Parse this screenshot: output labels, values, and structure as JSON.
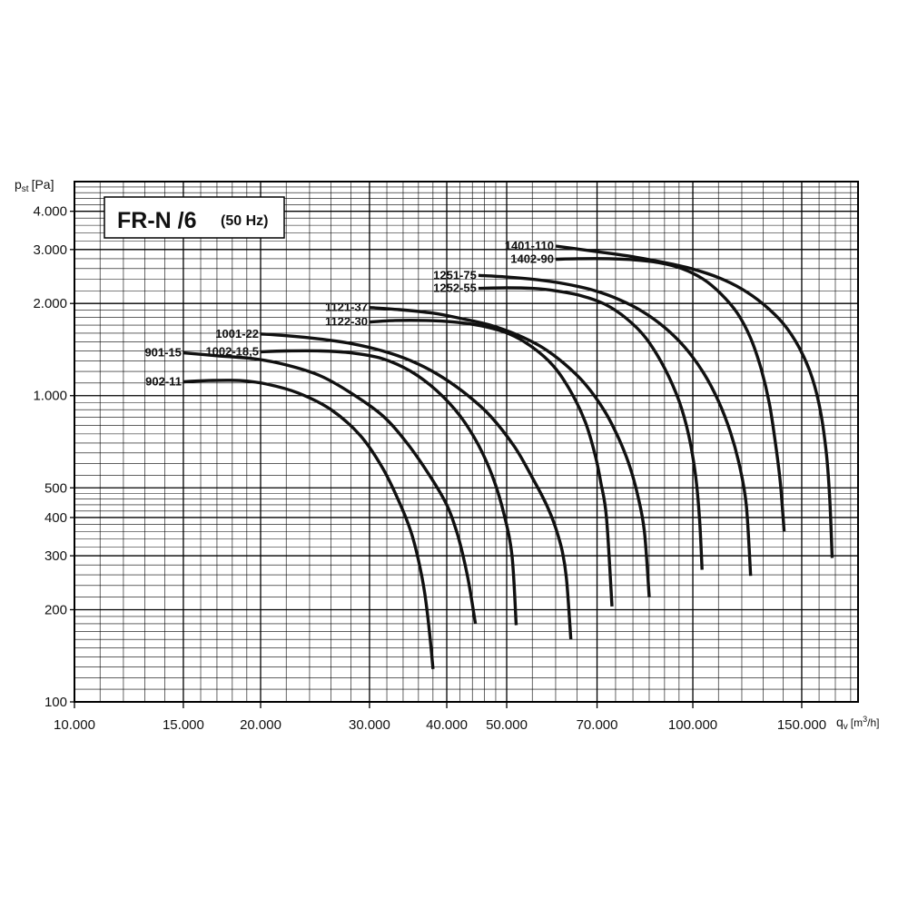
{
  "chart_data": {
    "type": "line",
    "title": "FR-N /6",
    "subtitle": "(50 Hz)",
    "ylabel": {
      "base": "p",
      "sub": "st",
      "unit": "[Pa]"
    },
    "xlabel": {
      "base": "q",
      "sub": "v",
      "unit_pre": "[m",
      "unit_sup": "3",
      "unit_post": "/h]"
    },
    "x_scale": "log",
    "y_scale": "log",
    "xlim": [
      10000,
      185000
    ],
    "ylim": [
      100,
      5000
    ],
    "grid": true,
    "x_ticks": [
      {
        "value": 10000,
        "label": "10.000"
      },
      {
        "value": 15000,
        "label": "15.000"
      },
      {
        "value": 20000,
        "label": "20.000"
      },
      {
        "value": 30000,
        "label": "30.000"
      },
      {
        "value": 40000,
        "label": "40.000"
      },
      {
        "value": 50000,
        "label": "50.000"
      },
      {
        "value": 70000,
        "label": "70.000"
      },
      {
        "value": 100000,
        "label": "100.000"
      },
      {
        "value": 150000,
        "label": "150.000"
      }
    ],
    "y_ticks": [
      {
        "value": 100,
        "label": "100"
      },
      {
        "value": 200,
        "label": "200"
      },
      {
        "value": 300,
        "label": "300"
      },
      {
        "value": 400,
        "label": "400"
      },
      {
        "value": 500,
        "label": "500"
      },
      {
        "value": 1000,
        "label": "1.000"
      },
      {
        "value": 2000,
        "label": "2.000"
      },
      {
        "value": 3000,
        "label": "3.000"
      },
      {
        "value": 4000,
        "label": "4.000"
      }
    ],
    "series": [
      {
        "name": "902-11",
        "x": [
          15000,
          16500,
          18500,
          20500,
          23000,
          26000,
          29000,
          31500,
          33500,
          35000,
          36000,
          36800,
          37500,
          38000
        ],
        "y": [
          1110,
          1120,
          1120,
          1090,
          1020,
          900,
          740,
          580,
          450,
          360,
          290,
          230,
          170,
          128
        ]
      },
      {
        "name": "901-15",
        "x": [
          15000,
          17000,
          19500,
          22000,
          25000,
          28000,
          31500,
          34500,
          37500,
          40000,
          41500,
          42500,
          43500,
          44500
        ],
        "y": [
          1380,
          1350,
          1320,
          1260,
          1160,
          1020,
          860,
          700,
          550,
          440,
          360,
          300,
          240,
          180
        ]
      },
      {
        "name": "1002-18,5",
        "x": [
          20000,
          22000,
          25000,
          28000,
          31500,
          35000,
          38500,
          42000,
          45000,
          47500,
          49500,
          51000,
          51800
        ],
        "y": [
          1390,
          1400,
          1400,
          1380,
          1320,
          1200,
          1040,
          860,
          690,
          540,
          410,
          300,
          178
        ]
      },
      {
        "name": "1001-22",
        "x": [
          20000,
          22000,
          25000,
          28000,
          31500,
          35000,
          38500,
          42500,
          47000,
          51500,
          55000,
          58000,
          60000,
          61500,
          62500,
          63500
        ],
        "y": [
          1590,
          1570,
          1530,
          1480,
          1400,
          1300,
          1180,
          1030,
          860,
          680,
          540,
          440,
          370,
          310,
          250,
          160
        ]
      },
      {
        "name": "1122-30",
        "x": [
          30000,
          33000,
          37000,
          41000,
          45500,
          50500,
          55000,
          59500,
          63500,
          67000,
          69500,
          71000,
          72500,
          74000
        ],
        "y": [
          1740,
          1760,
          1760,
          1740,
          1690,
          1590,
          1440,
          1250,
          1030,
          820,
          640,
          520,
          400,
          205
        ]
      },
      {
        "name": "1121-37",
        "x": [
          30000,
          33500,
          38000,
          42000,
          47000,
          52000,
          57000,
          62000,
          67000,
          72000,
          76000,
          79000,
          81500,
          83500,
          85000
        ],
        "y": [
          1940,
          1910,
          1860,
          1790,
          1700,
          1580,
          1440,
          1270,
          1090,
          890,
          720,
          590,
          470,
          360,
          220
        ]
      },
      {
        "name": "1252-55",
        "x": [
          45000,
          50000,
          55000,
          60000,
          66000,
          72000,
          78000,
          84000,
          90000,
          95000,
          98500,
          101000,
          102500,
          103500
        ],
        "y": [
          2240,
          2250,
          2240,
          2200,
          2120,
          1990,
          1790,
          1540,
          1230,
          960,
          740,
          550,
          400,
          270
        ]
      },
      {
        "name": "1251-75",
        "x": [
          45000,
          50000,
          56000,
          62000,
          69000,
          76000,
          83000,
          90000,
          97000,
          104000,
          110000,
          115000,
          119000,
          122000,
          124000
        ],
        "y": [
          2470,
          2440,
          2390,
          2320,
          2210,
          2060,
          1880,
          1670,
          1440,
          1190,
          960,
          760,
          590,
          440,
          258
        ]
      },
      {
        "name": "1402-90",
        "x": [
          60000,
          66000,
          73000,
          80000,
          88000,
          96000,
          104000,
          111000,
          118000,
          124000,
          129000,
          133000,
          136000,
          138500,
          140500
        ],
        "y": [
          2790,
          2800,
          2800,
          2780,
          2720,
          2600,
          2400,
          2150,
          1860,
          1540,
          1220,
          940,
          700,
          520,
          360
        ]
      },
      {
        "name": "1401-110",
        "x": [
          60000,
          66000,
          73000,
          81000,
          90000,
          100000,
          110000,
          120000,
          130000,
          140000,
          149000,
          156000,
          161000,
          164500,
          166500,
          168000
        ],
        "y": [
          3080,
          3000,
          2920,
          2830,
          2720,
          2590,
          2430,
          2230,
          1990,
          1720,
          1420,
          1140,
          880,
          640,
          460,
          295
        ]
      }
    ]
  }
}
